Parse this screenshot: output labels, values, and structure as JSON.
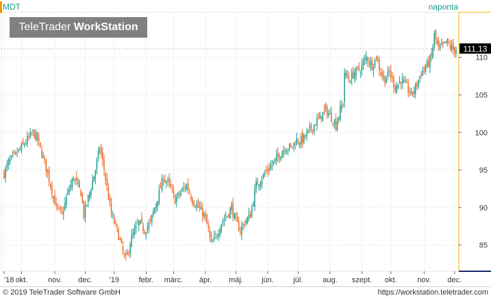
{
  "header": {
    "symbol": "MDT",
    "interval": "naponta",
    "logo_light": "TeleTrader ",
    "logo_bold": "WorkStation"
  },
  "footer": {
    "copyright": "© 2019 TeleTrader Software GmbH",
    "url": "https://workstation.teletrader.com"
  },
  "colors": {
    "up": "#1a9a8a",
    "down": "#f0651e",
    "last_price_bg": "#000000",
    "axis_border": "#f3b200",
    "grid": "#d9d9d9"
  },
  "chart_data": {
    "type": "candlestick",
    "title": "",
    "xlabel": "",
    "ylabel": "",
    "ylim": [
      81.5,
      116
    ],
    "y_ticks": [
      85,
      90,
      95,
      100,
      105,
      110
    ],
    "grid": true,
    "last_price": 111.13,
    "last_price_label": "111,13",
    "x_labels": [
      {
        "label": "'18",
        "index": 0
      },
      {
        "label": "okt.",
        "index": 12
      },
      {
        "label": "nov.",
        "index": 35
      },
      {
        "label": "dec.",
        "index": 56
      },
      {
        "label": "'19",
        "index": 76
      },
      {
        "label": "febr.",
        "index": 98
      },
      {
        "label": "márc.",
        "index": 117
      },
      {
        "label": "ápr.",
        "index": 139
      },
      {
        "label": "máj.",
        "index": 160
      },
      {
        "label": "jún.",
        "index": 182
      },
      {
        "label": "júl.",
        "index": 203
      },
      {
        "label": "aug.",
        "index": 225
      },
      {
        "label": "szept.",
        "index": 247
      },
      {
        "label": "okt.",
        "index": 267
      },
      {
        "label": "nov.",
        "index": 290
      },
      {
        "label": "dec.",
        "index": 311
      }
    ],
    "anchors": [
      [
        0,
        94.5
      ],
      [
        3,
        96
      ],
      [
        8,
        97
      ],
      [
        14,
        98.5
      ],
      [
        20,
        100
      ],
      [
        23,
        99
      ],
      [
        28,
        96
      ],
      [
        32,
        93
      ],
      [
        36,
        90
      ],
      [
        40,
        89
      ],
      [
        44,
        92
      ],
      [
        48,
        94
      ],
      [
        53,
        92
      ],
      [
        55,
        89
      ],
      [
        59,
        92
      ],
      [
        63,
        95
      ],
      [
        66,
        98
      ],
      [
        69,
        95
      ],
      [
        74,
        89
      ],
      [
        78,
        87
      ],
      [
        82,
        84
      ],
      [
        84,
        83
      ],
      [
        88,
        86
      ],
      [
        93,
        88
      ],
      [
        97,
        87
      ],
      [
        101,
        88
      ],
      [
        104,
        90
      ],
      [
        107,
        92
      ],
      [
        110,
        94
      ],
      [
        114,
        93
      ],
      [
        118,
        91
      ],
      [
        122,
        92
      ],
      [
        126,
        93
      ],
      [
        130,
        91
      ],
      [
        134,
        90
      ],
      [
        138,
        89
      ],
      [
        141,
        87
      ],
      [
        143,
        85
      ],
      [
        146,
        86
      ],
      [
        150,
        88
      ],
      [
        154,
        89
      ],
      [
        157,
        90
      ],
      [
        160,
        88
      ],
      [
        163,
        87
      ],
      [
        166,
        88
      ],
      [
        170,
        89
      ],
      [
        174,
        93
      ],
      [
        178,
        94
      ],
      [
        182,
        95
      ],
      [
        186,
        96
      ],
      [
        190,
        97
      ],
      [
        194,
        98
      ],
      [
        198,
        98
      ],
      [
        202,
        99
      ],
      [
        206,
        99
      ],
      [
        210,
        100
      ],
      [
        214,
        101
      ],
      [
        218,
        102
      ],
      [
        222,
        103
      ],
      [
        226,
        102
      ],
      [
        229,
        101
      ],
      [
        232,
        103
      ],
      [
        234,
        104
      ],
      [
        235,
        108
      ],
      [
        238,
        107
      ],
      [
        242,
        108
      ],
      [
        246,
        108.5
      ],
      [
        250,
        110
      ],
      [
        254,
        109
      ],
      [
        257,
        110
      ],
      [
        260,
        108
      ],
      [
        263,
        107
      ],
      [
        266,
        108
      ],
      [
        270,
        106
      ],
      [
        274,
        107
      ],
      [
        278,
        106
      ],
      [
        281,
        105
      ],
      [
        284,
        106
      ],
      [
        288,
        108
      ],
      [
        292,
        109
      ],
      [
        295,
        110
      ],
      [
        297,
        113
      ],
      [
        300,
        111
      ],
      [
        303,
        111.5
      ],
      [
        306,
        112
      ],
      [
        310,
        111
      ],
      [
        312,
        111.13
      ]
    ]
  }
}
